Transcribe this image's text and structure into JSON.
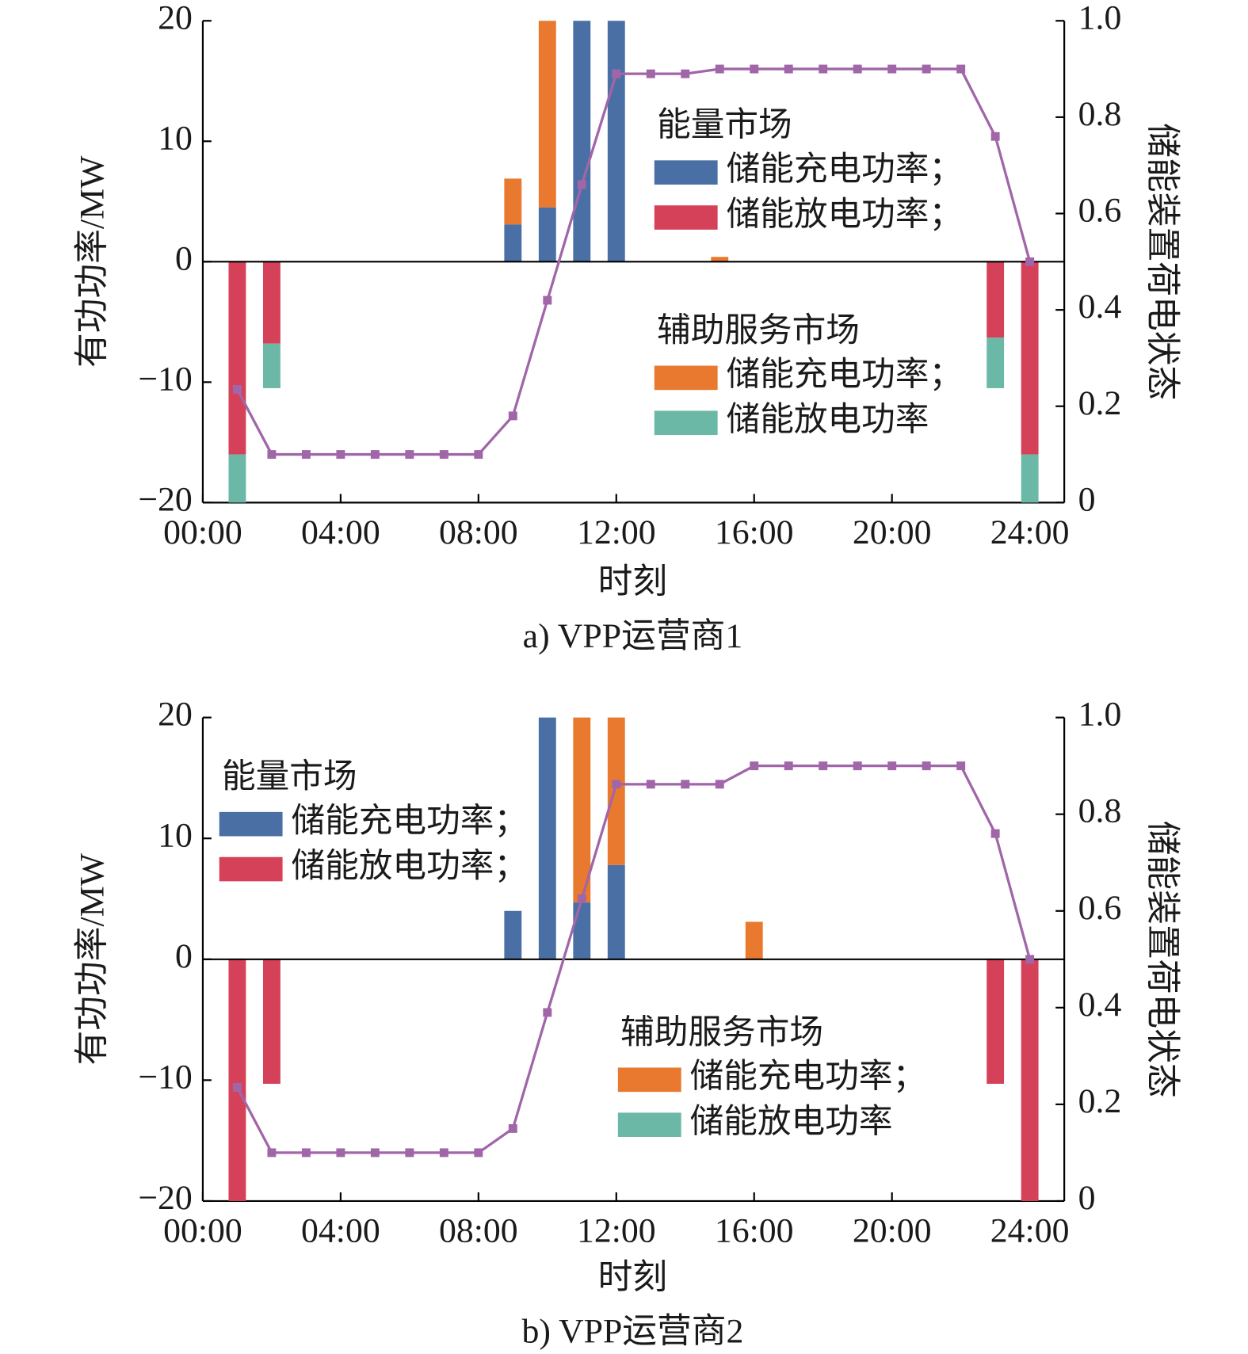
{
  "chart_data": [
    {
      "type": "bar",
      "caption": "a) VPP运营商1",
      "xlabel": "时刻",
      "ylabel": "有功功率/MW",
      "y2label": "储能装置荷电状态",
      "stacked": true,
      "legend_groups": [
        "能量市场",
        "辅助服务市场"
      ],
      "x": [
        1,
        2,
        3,
        4,
        5,
        6,
        7,
        8,
        9,
        10,
        11,
        12,
        13,
        14,
        15,
        16,
        17,
        18,
        19,
        20,
        21,
        22,
        23,
        24
      ],
      "xlim": [
        0,
        25
      ],
      "xticks": [
        {
          "value": 0,
          "label": "00:00"
        },
        {
          "value": 4,
          "label": "04:00"
        },
        {
          "value": 8,
          "label": "08:00"
        },
        {
          "value": 12,
          "label": "12:00"
        },
        {
          "value": 16,
          "label": "16:00"
        },
        {
          "value": 20,
          "label": "20:00"
        },
        {
          "value": 24,
          "label": "24:00"
        }
      ],
      "ylim": [
        -20,
        20
      ],
      "yticks": [
        {
          "value": -20,
          "label": "−20"
        },
        {
          "value": -10,
          "label": "−10"
        },
        0,
        10,
        20
      ],
      "y2lim": [
        0,
        1
      ],
      "y2ticks": [
        0,
        0.2,
        0.4,
        0.6,
        0.8,
        {
          "value": 1,
          "label": "1.0"
        }
      ],
      "series": [
        {
          "name": "储能充电功率；",
          "color": "#4a6fa5",
          "values": [
            null,
            null,
            null,
            null,
            null,
            null,
            null,
            null,
            3.1,
            4.5,
            20,
            20,
            null,
            null,
            null,
            null,
            null,
            null,
            null,
            null,
            null,
            null,
            null,
            null
          ]
        },
        {
          "name": "储能放电功率；",
          "color": "#d6415a",
          "values": [
            -16,
            -6.8,
            null,
            null,
            null,
            null,
            null,
            null,
            null,
            null,
            null,
            null,
            null,
            null,
            null,
            null,
            null,
            null,
            null,
            null,
            null,
            null,
            -6.3,
            -16
          ]
        },
        {
          "name": "储能充电功率；",
          "color": "#e8792f",
          "values": [
            null,
            null,
            null,
            null,
            null,
            null,
            null,
            null,
            3.8,
            15.5,
            null,
            null,
            null,
            null,
            0.4,
            null,
            null,
            null,
            null,
            null,
            null,
            null,
            null,
            null
          ]
        },
        {
          "name": "储能放电功率",
          "color": "#6cb8a6",
          "values": [
            -4,
            -3.7,
            null,
            null,
            null,
            null,
            null,
            null,
            null,
            null,
            null,
            null,
            null,
            null,
            null,
            null,
            null,
            null,
            null,
            null,
            null,
            null,
            -4.2,
            -4
          ]
        },
        {
          "type": "line",
          "axis": "y2",
          "color": "#a066a8",
          "values": [
            0.235,
            0.1,
            0.1,
            0.1,
            0.1,
            0.1,
            0.1,
            0.1,
            0.18,
            0.42,
            0.66,
            0.89,
            0.89,
            0.89,
            0.9,
            0.9,
            0.9,
            0.9,
            0.9,
            0.9,
            0.9,
            0.9,
            0.76,
            0.5
          ]
        }
      ]
    },
    {
      "type": "bar",
      "caption": "b) VPP运营商2",
      "xlabel": "时刻",
      "ylabel": "有功功率/MW",
      "y2label": "储能装置荷电状态",
      "stacked": true,
      "legend_groups": [
        "能量市场",
        "辅助服务市场"
      ],
      "x": [
        1,
        2,
        3,
        4,
        5,
        6,
        7,
        8,
        9,
        10,
        11,
        12,
        13,
        14,
        15,
        16,
        17,
        18,
        19,
        20,
        21,
        22,
        23,
        24
      ],
      "xlim": [
        0,
        25
      ],
      "xticks": [
        {
          "value": 0,
          "label": "00:00"
        },
        {
          "value": 4,
          "label": "04:00"
        },
        {
          "value": 8,
          "label": "08:00"
        },
        {
          "value": 12,
          "label": "12:00"
        },
        {
          "value": 16,
          "label": "16:00"
        },
        {
          "value": 20,
          "label": "20:00"
        },
        {
          "value": 24,
          "label": "24:00"
        }
      ],
      "ylim": [
        -20,
        20
      ],
      "yticks": [
        {
          "value": -20,
          "label": "−20"
        },
        {
          "value": -10,
          "label": "−10"
        },
        0,
        10,
        20
      ],
      "y2lim": [
        0,
        1
      ],
      "y2ticks": [
        0,
        0.2,
        0.4,
        0.6,
        0.8,
        {
          "value": 1,
          "label": "1.0"
        }
      ],
      "series": [
        {
          "name": "储能充电功率；",
          "color": "#4a6fa5",
          "values": [
            null,
            null,
            null,
            null,
            null,
            null,
            null,
            null,
            4.0,
            20,
            4.7,
            7.8,
            null,
            null,
            null,
            null,
            null,
            null,
            null,
            null,
            null,
            null,
            null,
            null
          ]
        },
        {
          "name": "储能放电功率；",
          "color": "#d6415a",
          "values": [
            -20,
            -10.3,
            null,
            null,
            null,
            null,
            null,
            null,
            null,
            null,
            null,
            null,
            null,
            null,
            null,
            null,
            null,
            null,
            null,
            null,
            null,
            null,
            -10.3,
            -20
          ]
        },
        {
          "name": "储能充电功率；",
          "color": "#e8792f",
          "values": [
            null,
            null,
            null,
            null,
            null,
            null,
            null,
            null,
            null,
            null,
            15.3,
            12.2,
            null,
            null,
            null,
            3.1,
            null,
            null,
            null,
            null,
            null,
            null,
            null,
            null
          ]
        },
        {
          "name": "储能放电功率",
          "color": "#6cb8a6",
          "values": [
            null,
            null,
            null,
            null,
            null,
            null,
            null,
            null,
            null,
            null,
            null,
            null,
            null,
            null,
            null,
            null,
            null,
            null,
            null,
            null,
            null,
            null,
            null,
            null
          ]
        },
        {
          "type": "line",
          "axis": "y2",
          "color": "#a066a8",
          "values": [
            0.235,
            0.1,
            0.1,
            0.1,
            0.1,
            0.1,
            0.1,
            0.1,
            0.15,
            0.39,
            0.625,
            0.862,
            0.862,
            0.862,
            0.862,
            0.9,
            0.9,
            0.9,
            0.9,
            0.9,
            0.9,
            0.9,
            0.76,
            0.5
          ]
        }
      ]
    }
  ]
}
